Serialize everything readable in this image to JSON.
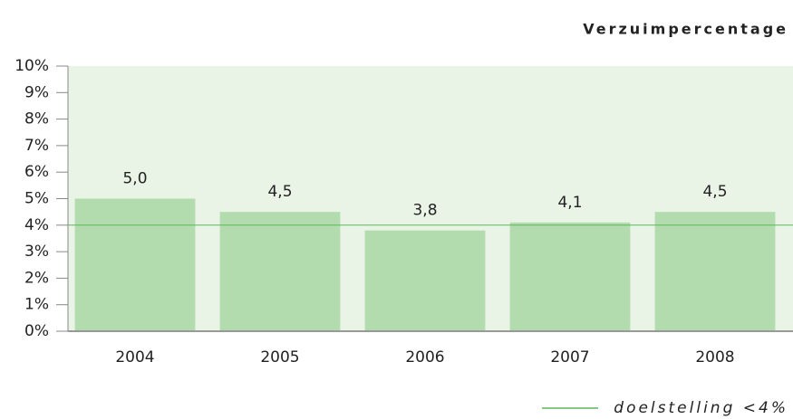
{
  "chart_data": {
    "type": "bar",
    "title": "Verzuimpercentage",
    "categories": [
      "2004",
      "2005",
      "2006",
      "2007",
      "2008"
    ],
    "values": [
      5.0,
      4.5,
      3.8,
      4.1,
      4.5
    ],
    "value_labels": [
      "5,0",
      "4,5",
      "3,8",
      "4,1",
      "4,5"
    ],
    "color": "#b3dcae",
    "background": "#eaf4e6",
    "ylim": [
      0,
      10
    ],
    "yticks": [
      {
        "value": 0,
        "label": "0%"
      },
      {
        "value": 1,
        "label": "1%"
      },
      {
        "value": 2,
        "label": "2%"
      },
      {
        "value": 3,
        "label": "3%"
      },
      {
        "value": 4,
        "label": "4%"
      },
      {
        "value": 5,
        "label": "5%"
      },
      {
        "value": 6,
        "label": "6%"
      },
      {
        "value": 7,
        "label": "7%"
      },
      {
        "value": 8,
        "label": "8%"
      },
      {
        "value": 9,
        "label": "9%"
      },
      {
        "value": 10,
        "label": "10%"
      }
    ],
    "target": {
      "value": 4,
      "label": "doelstelling <4%",
      "color": "#5cb85c"
    }
  }
}
